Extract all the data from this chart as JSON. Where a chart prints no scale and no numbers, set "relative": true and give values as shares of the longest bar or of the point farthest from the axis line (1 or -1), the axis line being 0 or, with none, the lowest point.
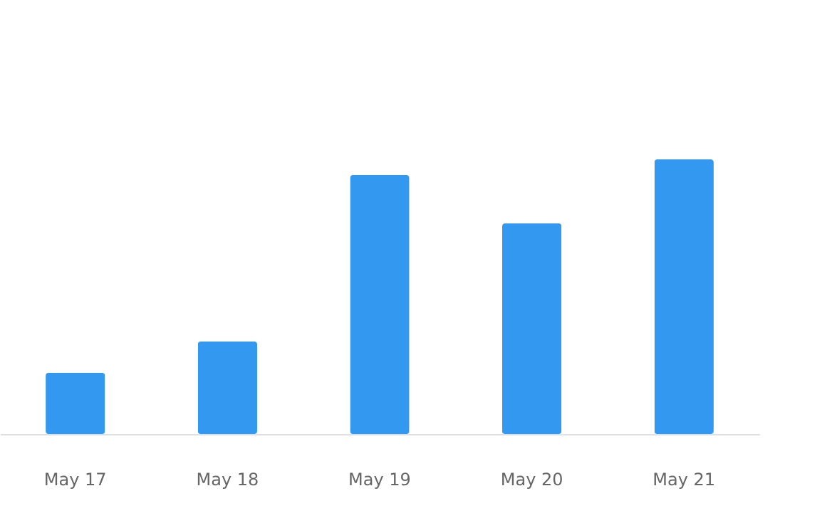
{
  "chart_data": {
    "type": "bar",
    "relative": true,
    "categories": [
      "May 17",
      "May 18",
      "May 19",
      "May 20",
      "May 21"
    ],
    "values": [
      0.223,
      0.337,
      0.943,
      0.767,
      1.0
    ],
    "color": "#3399f0"
  }
}
